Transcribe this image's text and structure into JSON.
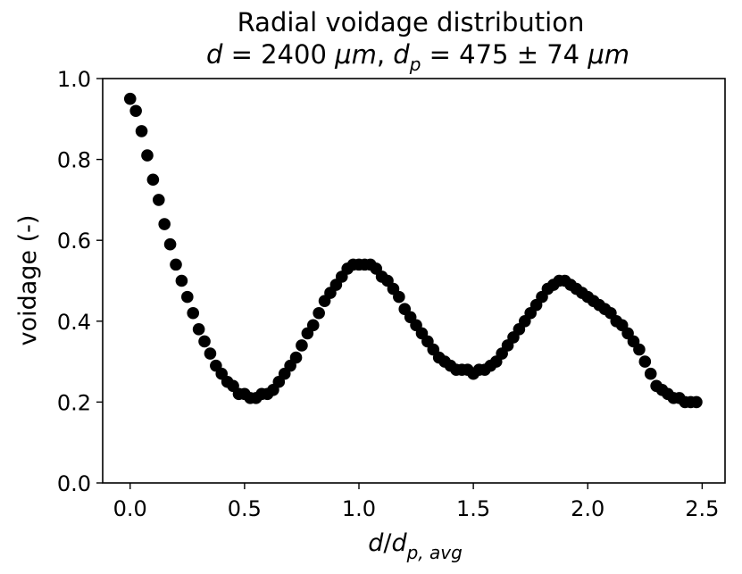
{
  "chart_data": {
    "type": "scatter",
    "title": "Radial voidage distribution",
    "subtitle": "d = 2400 μm, d_p = 475 ± 74 μm",
    "xlabel": "d/d_{p,avg}",
    "ylabel": "voidage (-)",
    "xlim": [
      -0.12,
      2.6
    ],
    "ylim": [
      0.0,
      1.0
    ],
    "xticks": [
      "0.0",
      "0.5",
      "1.0",
      "1.5",
      "2.0",
      "2.5"
    ],
    "yticks": [
      "0.0",
      "0.2",
      "0.4",
      "0.6",
      "0.8",
      "1.0"
    ],
    "grid": false,
    "marker_color": "#000000",
    "series": [
      {
        "x": [
          0.0,
          0.025,
          0.05,
          0.075,
          0.1,
          0.125,
          0.15,
          0.175,
          0.2,
          0.225,
          0.25,
          0.275,
          0.3,
          0.325,
          0.35,
          0.375,
          0.4,
          0.425,
          0.45,
          0.475,
          0.5,
          0.525,
          0.55,
          0.575,
          0.6,
          0.625,
          0.65,
          0.675,
          0.7,
          0.725,
          0.75,
          0.775,
          0.8,
          0.825,
          0.85,
          0.875,
          0.9,
          0.925,
          0.95,
          0.975,
          1.0,
          1.025,
          1.05,
          1.075,
          1.1,
          1.125,
          1.15,
          1.175,
          1.2,
          1.225,
          1.25,
          1.275,
          1.3,
          1.325,
          1.35,
          1.375,
          1.4,
          1.425,
          1.45,
          1.475,
          1.5,
          1.525,
          1.55,
          1.575,
          1.6,
          1.625,
          1.65,
          1.675,
          1.7,
          1.725,
          1.75,
          1.775,
          1.8,
          1.825,
          1.85,
          1.875,
          1.9,
          1.925,
          1.95,
          1.975,
          2.0,
          2.025,
          2.05,
          2.075,
          2.1,
          2.125,
          2.15,
          2.175,
          2.2,
          2.225,
          2.25,
          2.275,
          2.3,
          2.325,
          2.35,
          2.375,
          2.4,
          2.425,
          2.45,
          2.475
        ],
        "y": [
          0.95,
          0.92,
          0.87,
          0.81,
          0.75,
          0.7,
          0.64,
          0.59,
          0.54,
          0.5,
          0.46,
          0.42,
          0.38,
          0.35,
          0.32,
          0.29,
          0.27,
          0.25,
          0.24,
          0.22,
          0.22,
          0.21,
          0.21,
          0.22,
          0.22,
          0.23,
          0.25,
          0.27,
          0.29,
          0.31,
          0.34,
          0.37,
          0.39,
          0.42,
          0.45,
          0.47,
          0.49,
          0.51,
          0.53,
          0.54,
          0.54,
          0.54,
          0.54,
          0.53,
          0.51,
          0.5,
          0.48,
          0.46,
          0.43,
          0.41,
          0.39,
          0.37,
          0.35,
          0.33,
          0.31,
          0.3,
          0.29,
          0.28,
          0.28,
          0.28,
          0.27,
          0.28,
          0.28,
          0.29,
          0.3,
          0.32,
          0.34,
          0.36,
          0.38,
          0.4,
          0.42,
          0.44,
          0.46,
          0.48,
          0.49,
          0.5,
          0.5,
          0.49,
          0.48,
          0.47,
          0.46,
          0.45,
          0.44,
          0.43,
          0.42,
          0.4,
          0.39,
          0.37,
          0.35,
          0.33,
          0.3,
          0.27,
          0.24,
          0.23,
          0.22,
          0.21,
          0.21,
          0.2,
          0.2,
          0.2
        ]
      }
    ]
  }
}
